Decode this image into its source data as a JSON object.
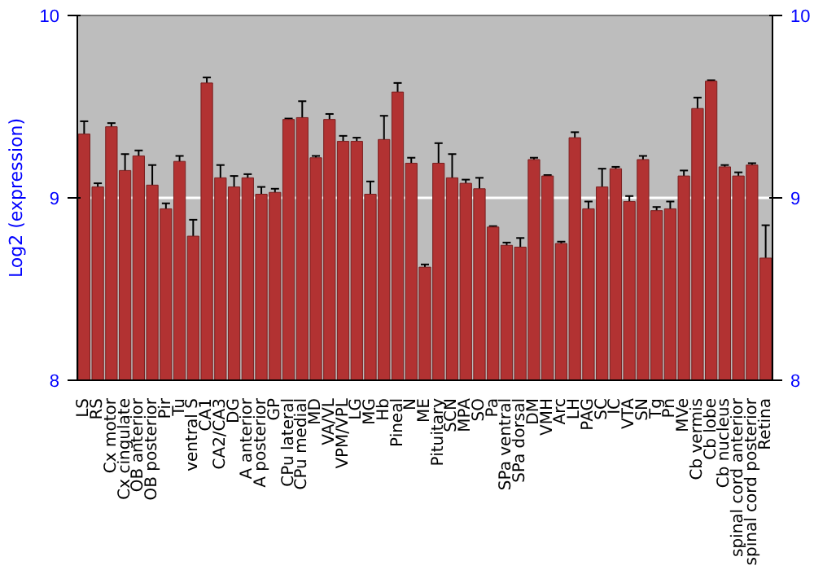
{
  "chart_data": {
    "type": "bar",
    "ylabel": "Log2 (expression)",
    "ylim": [
      8,
      10
    ],
    "yticks": [
      8,
      9,
      10
    ],
    "y2lim": [
      8,
      10
    ],
    "y2ticks": [
      8,
      9,
      10
    ],
    "grid": "y",
    "color": "#b23232",
    "categories": [
      "LS",
      "RS",
      "Cx motor",
      "Cx cingulate",
      "OB anterior",
      "OB posterior",
      "Pir",
      "Tu",
      "ventral S",
      "CA1",
      "CA2/CA3",
      "DG",
      "A anterior",
      "A posterior",
      "GP",
      "CPu lateral",
      "CPu medial",
      "MD",
      "VA/VL",
      "VPM/VPL",
      "LG",
      "MG",
      "Hb",
      "Pineal",
      "N",
      "ME",
      "Pituitary",
      "SCN",
      "MPA",
      "SO",
      "Pa",
      "SPa ventral",
      "SPa dorsal",
      "DM",
      "VMH",
      "Arc",
      "LH",
      "PAG",
      "SC",
      "IC",
      "VTA",
      "SN",
      "Tg",
      "Pn",
      "MVe",
      "Cb vermis",
      "Cb lobe",
      "Cb nucleus",
      "spinal cord anterior",
      "spinal cord posterior",
      "Retina"
    ],
    "values": [
      9.35,
      9.06,
      9.39,
      9.15,
      9.23,
      9.07,
      8.94,
      9.2,
      8.79,
      9.63,
      9.11,
      9.06,
      9.11,
      9.02,
      9.03,
      9.43,
      9.44,
      9.22,
      9.43,
      9.31,
      9.31,
      9.02,
      9.32,
      9.58,
      9.19,
      8.62,
      9.19,
      9.11,
      9.08,
      9.05,
      8.84,
      8.74,
      8.73,
      9.21,
      9.12,
      8.75,
      9.33,
      8.94,
      9.06,
      9.16,
      8.98,
      9.21,
      8.93,
      8.94,
      9.12,
      9.49,
      9.64,
      9.17,
      9.12,
      9.18,
      8.67
    ],
    "errors": [
      0.07,
      0.02,
      0.02,
      0.09,
      0.03,
      0.11,
      0.03,
      0.03,
      0.09,
      0.03,
      0.07,
      0.06,
      0.02,
      0.04,
      0.02,
      0.005,
      0.09,
      0.01,
      0.03,
      0.03,
      0.02,
      0.07,
      0.13,
      0.05,
      0.03,
      0.015,
      0.11,
      0.13,
      0.02,
      0.06,
      0.005,
      0.015,
      0.05,
      0.01,
      0.005,
      0.01,
      0.03,
      0.04,
      0.1,
      0.01,
      0.03,
      0.02,
      0.02,
      0.04,
      0.03,
      0.06,
      0.005,
      0.01,
      0.02,
      0.01,
      0.18
    ]
  }
}
